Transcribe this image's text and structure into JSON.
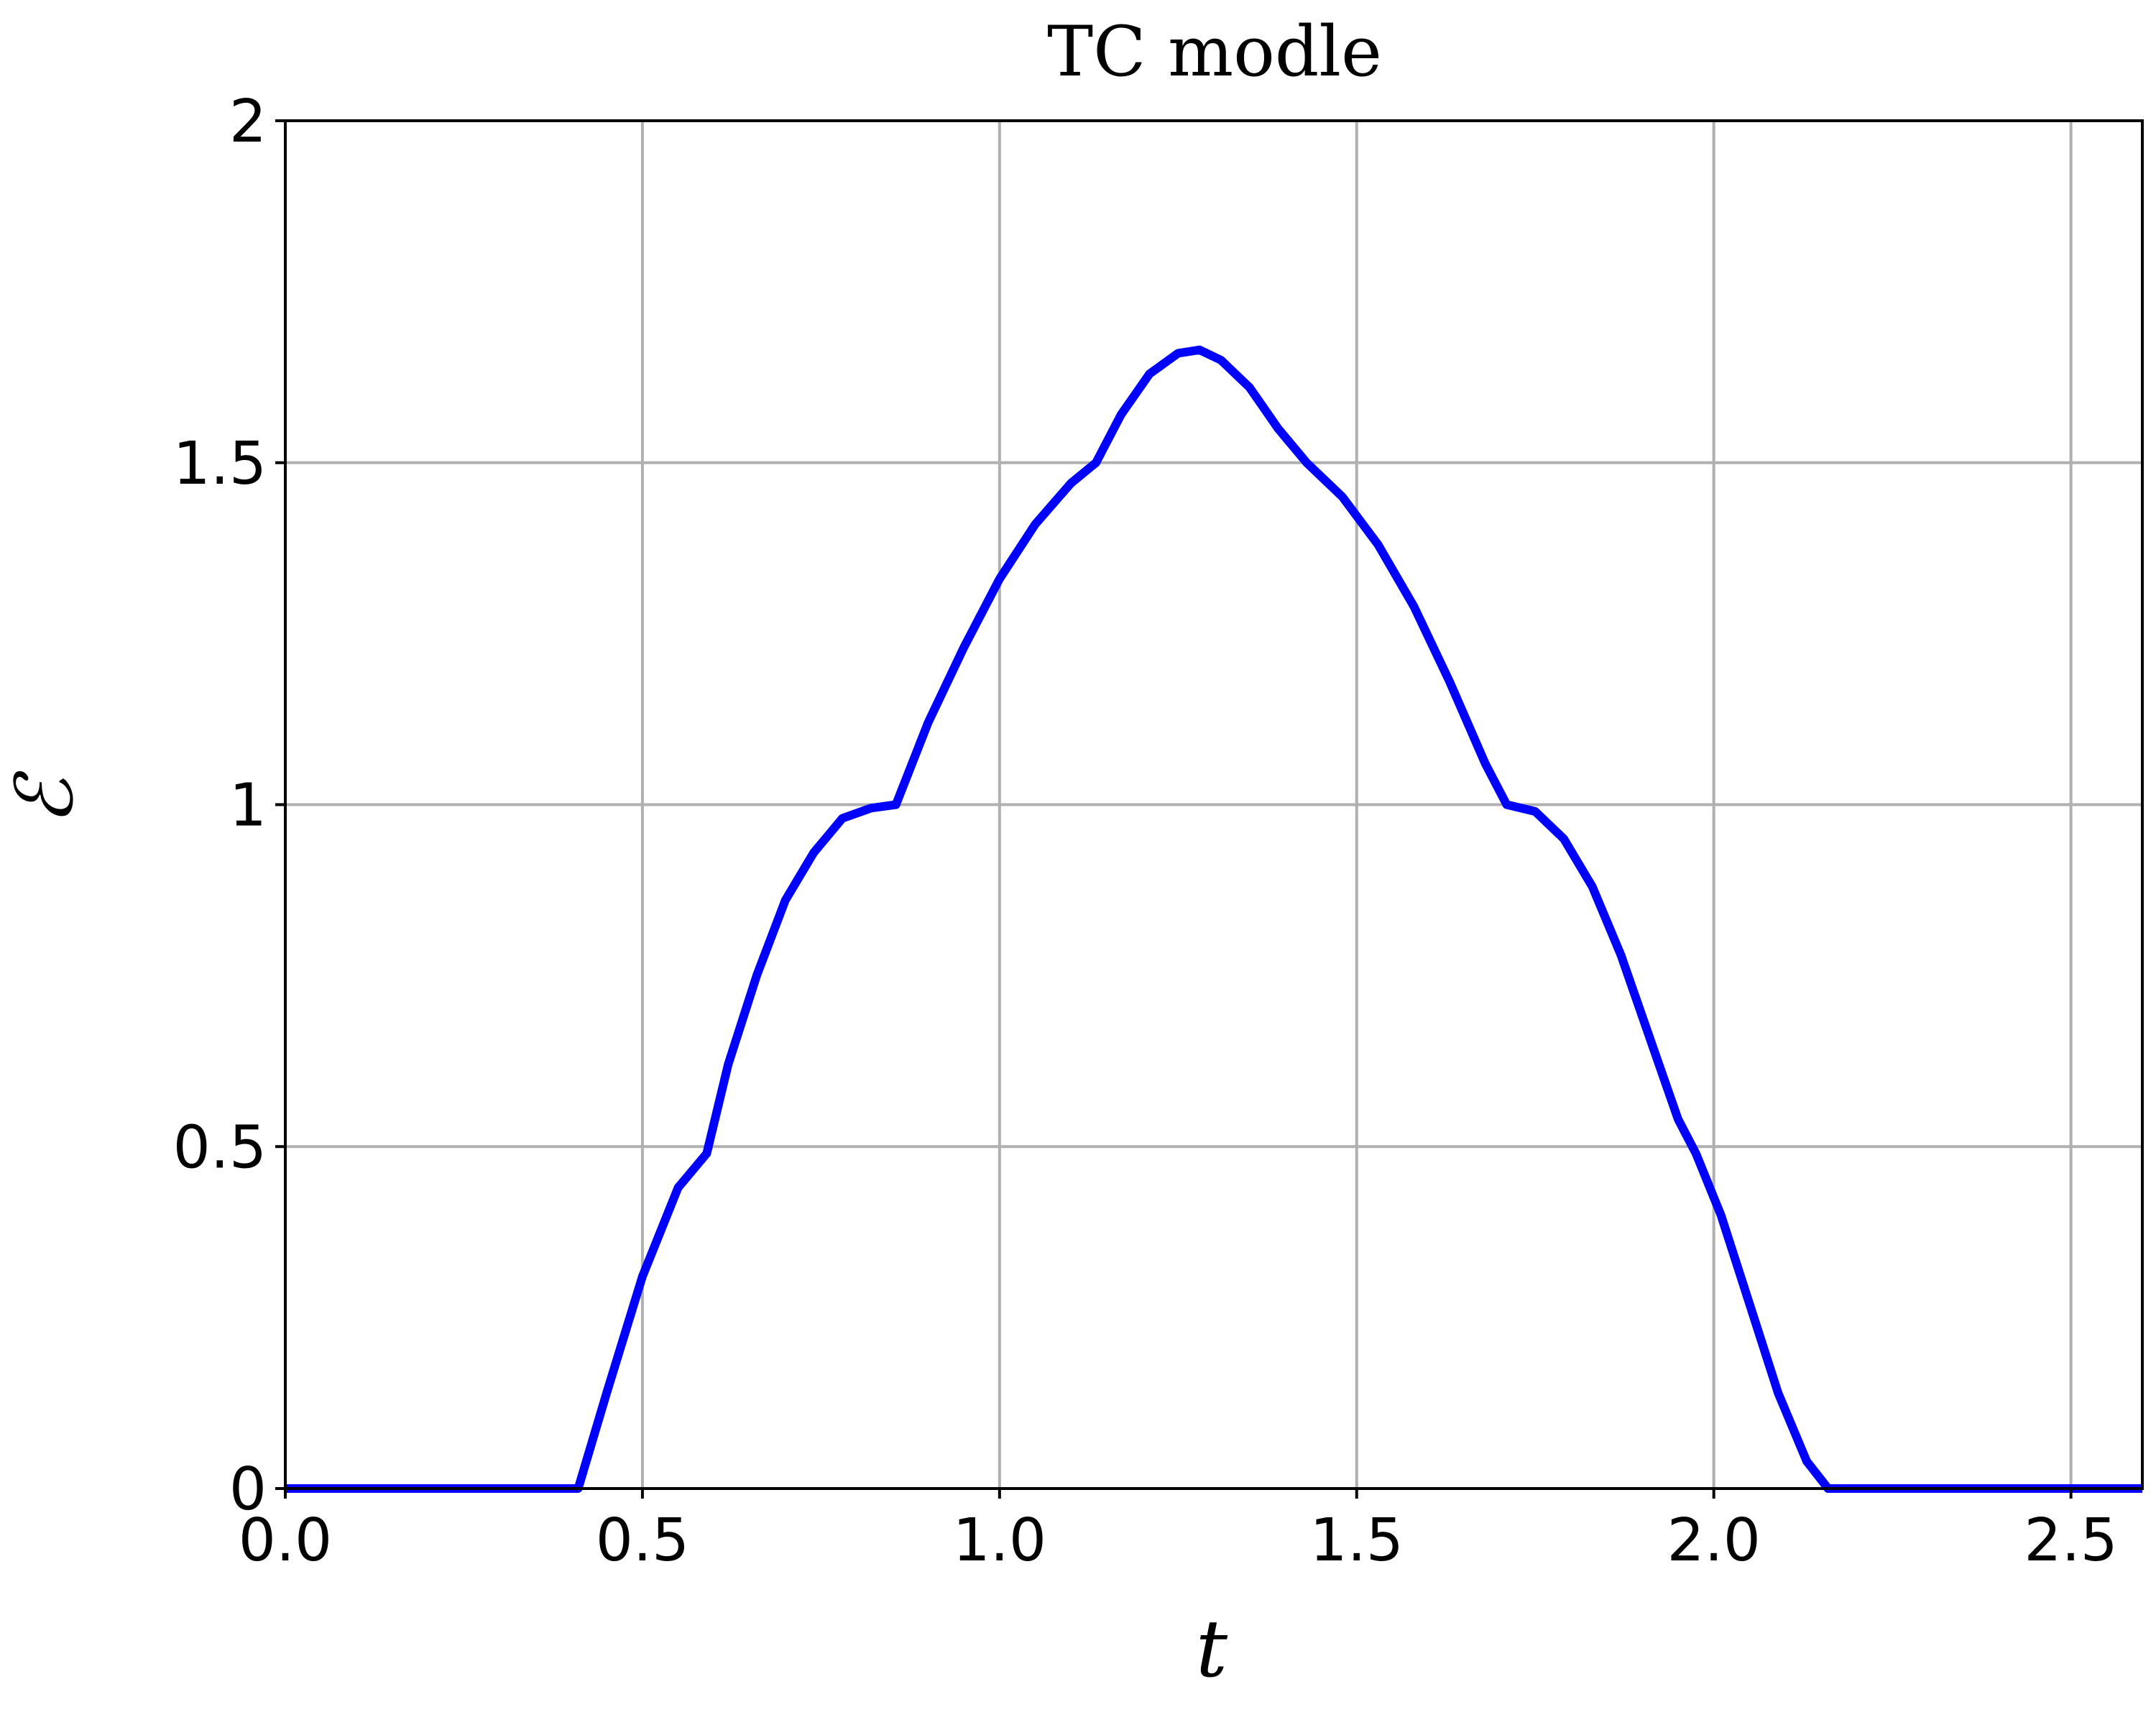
{
  "chart_data": {
    "type": "line",
    "title": "TC modle",
    "xlabel": "t",
    "ylabel": "ℰ",
    "xlim": [
      0.0,
      2.6
    ],
    "ylim": [
      0,
      2
    ],
    "xticks": [
      0.0,
      0.5,
      1.0,
      1.5,
      2.0,
      2.5
    ],
    "xtick_labels": [
      "0.0",
      "0.5",
      "1.0",
      "1.5",
      "2.0",
      "2.5"
    ],
    "yticks": [
      0,
      0.5,
      1,
      1.5,
      2
    ],
    "ytick_labels": [
      "0",
      "0.5",
      "1",
      "1.5",
      "2"
    ],
    "grid": true,
    "legend": "none",
    "series": [
      {
        "color": "#0000ff",
        "x": [
          0.0,
          0.41,
          0.45,
          0.5,
          0.55,
          0.59,
          0.62,
          0.66,
          0.7,
          0.74,
          0.78,
          0.82,
          0.855,
          0.9,
          0.95,
          1.0,
          1.05,
          1.1,
          1.135,
          1.17,
          1.21,
          1.25,
          1.28,
          1.31,
          1.35,
          1.39,
          1.43,
          1.48,
          1.53,
          1.58,
          1.63,
          1.68,
          1.71,
          1.75,
          1.79,
          1.83,
          1.87,
          1.91,
          1.95,
          1.975,
          2.01,
          2.05,
          2.09,
          2.13,
          2.16,
          2.6
        ],
        "y": [
          0.0,
          0.0,
          0.14,
          0.31,
          0.44,
          0.49,
          0.62,
          0.75,
          0.86,
          0.93,
          0.98,
          0.995,
          1.0,
          1.12,
          1.23,
          1.33,
          1.41,
          1.47,
          1.5,
          1.57,
          1.63,
          1.66,
          1.665,
          1.65,
          1.61,
          1.55,
          1.5,
          1.45,
          1.38,
          1.29,
          1.18,
          1.06,
          1.0,
          0.99,
          0.95,
          0.88,
          0.78,
          0.66,
          0.54,
          0.49,
          0.4,
          0.27,
          0.14,
          0.04,
          0.0,
          0.0
        ]
      }
    ]
  }
}
